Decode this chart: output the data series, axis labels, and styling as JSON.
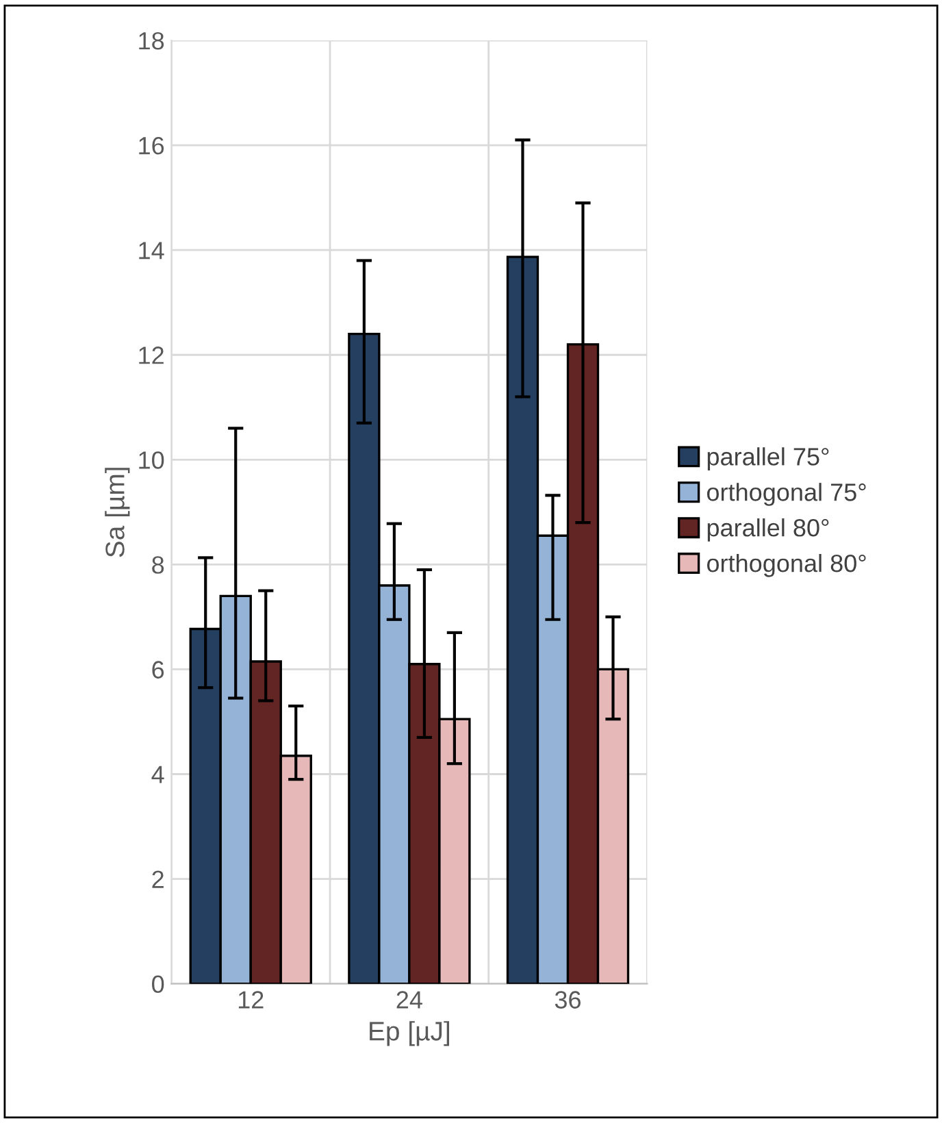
{
  "chart_data": {
    "type": "bar",
    "xlabel": "Ep [µJ]",
    "ylabel": "Sa [µm]",
    "categories": [
      "12",
      "24",
      "36"
    ],
    "series": [
      {
        "name": "parallel 75°",
        "color": "#243f60",
        "values": [
          6.77,
          12.4,
          13.87
        ],
        "errors": [
          [
            5.65,
            8.13
          ],
          [
            10.7,
            13.8
          ],
          [
            11.2,
            16.1
          ]
        ]
      },
      {
        "name": "orthogonal 75°",
        "color": "#95b3d7",
        "values": [
          7.4,
          7.6,
          8.55
        ],
        "errors": [
          [
            5.45,
            10.6
          ],
          [
            6.95,
            8.78
          ],
          [
            6.95,
            9.32
          ]
        ]
      },
      {
        "name": "parallel 80°",
        "color": "#632523",
        "values": [
          6.15,
          6.1,
          12.2
        ],
        "errors": [
          [
            5.4,
            7.5
          ],
          [
            4.7,
            7.9
          ],
          [
            8.8,
            14.9
          ]
        ]
      },
      {
        "name": "orthogonal 80°",
        "color": "#e6b9b8",
        "values": [
          4.35,
          5.05,
          6.0
        ],
        "errors": [
          [
            3.9,
            5.3
          ],
          [
            4.2,
            6.7
          ],
          [
            5.05,
            7.0
          ]
        ]
      }
    ],
    "ylim": [
      0,
      18
    ],
    "yticks": [
      0,
      2,
      4,
      6,
      8,
      10,
      12,
      14,
      16,
      18
    ],
    "grid": true,
    "legend": "right"
  }
}
